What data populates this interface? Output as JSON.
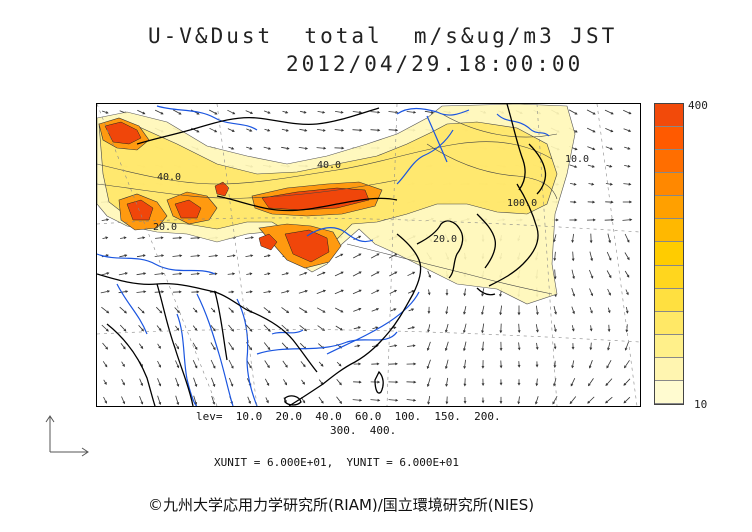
{
  "title": {
    "line1": "U-V&Dust  total  m/s&ug/m3 JST",
    "line2": "2012/04/29.18:00:00"
  },
  "colorbar": {
    "max_label": "400",
    "min_label": "10",
    "colors": [
      "#fffbd0",
      "#fff5b0",
      "#fff08a",
      "#ffe866",
      "#ffe040",
      "#ffd61e",
      "#ffcc00",
      "#ffb800",
      "#ffa000",
      "#ff8800",
      "#ff6e00",
      "#ff5a00",
      "#f24a0a"
    ]
  },
  "legend": {
    "levels_line1": "lev=  10.0  20.0  40.0  60.0  100.  150.  200.",
    "levels_line2": "300.  400."
  },
  "units": "XUNIT = 6.000E+01,  YUNIT = 6.000E+01",
  "credit": "©九州大学応用力学研究所(RIAM)/国立環境研究所(NIES)",
  "map_labels": {
    "c40a": "40.0",
    "c40b": "40.0",
    "c100": "100.0",
    "c20a": "20.0",
    "c20b": "20.0",
    "c10": "10.0"
  },
  "styles": {
    "coast": "#000000",
    "rivers": "#1a55e0",
    "plume_light": "#fff6b0",
    "plume_mid": "#ffe14a",
    "plume_high": "#ff8a00",
    "plume_peak": "#f24a0a",
    "arrows": "#333333"
  }
}
